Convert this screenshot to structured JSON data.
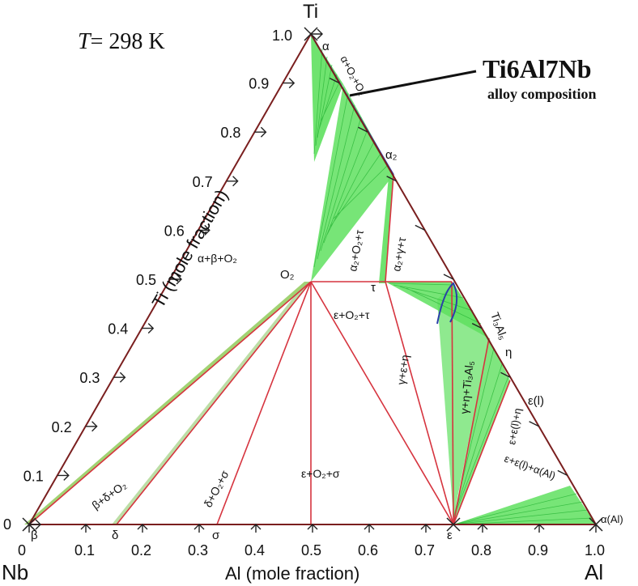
{
  "title": {
    "temperature_T": "T",
    "temperature_value": "= 298 K"
  },
  "elements": {
    "top": "Ti",
    "bottom_left": "Nb",
    "bottom_right": "Al"
  },
  "axes": {
    "ti_label": "Ti (mole fraction)",
    "al_label": "Al (mole fraction)",
    "ti_ticks": [
      "0",
      "0.1",
      "0.2",
      "0.3",
      "0.4",
      "0.5",
      "0.6",
      "0.7",
      "0.8",
      "0.9",
      "1.0"
    ],
    "al_ticks": [
      "0",
      "0.1",
      "0.2",
      "0.3",
      "0.4",
      "0.5",
      "0.6",
      "0.7",
      "0.8",
      "0.9",
      "1.0"
    ]
  },
  "callout": {
    "alloy_name": "Ti6Al7Nb",
    "alloy_caption": "alloy composition"
  },
  "phase_points": {
    "alpha": "α",
    "alpha2": "α₂",
    "O2": "O₂",
    "tau": "τ",
    "Ti3Al5": "Ti₃Al₅",
    "eta": "η",
    "eps_l": "ε(l)",
    "alpha_Al": "α(Al)",
    "beta": "β",
    "delta": "δ",
    "sigma": "σ",
    "epsilon": "ε"
  },
  "regions": {
    "alpha_beta_O2": "α+β+O₂",
    "alpha_O2": "α+O₂+O₂",
    "alpha2_O2_tau": "α₂+O₂+τ",
    "alpha2_gamma_tau": "α₂+γ+τ",
    "eps_O2_tau": "ε+O₂+τ",
    "gamma_eps_eta": "γ+ε+η",
    "gamma_eta_Ti3Al5": "γ+η+Ti₃Al₅",
    "eps_epsl_eta": "ε+ε(l)+η",
    "eps_epsl_alphaAl": "ε+ε(l)+α(Al)",
    "eps_O2_sigma": "ε+O₂+σ",
    "delta_O2_sigma": "δ+O₂+σ",
    "beta_delta_O2": "β+δ+O₂"
  },
  "colors": {
    "frame": "#7a1f1f",
    "tie_line": "#d6343f",
    "two_phase_fill": "#5fe05f",
    "two_phase_line": "#2db83a",
    "boundary_blue": "#2a3fa8",
    "tick": "#222222"
  },
  "chart_data": {
    "type": "ternary_phase_diagram",
    "components": [
      "Ti",
      "Nb",
      "Al"
    ],
    "compositions_mole_fraction": {
      "Ti": {
        "Al": 0.0,
        "Ti": 1.0
      },
      "Nb": {
        "Al": 0.0,
        "Ti": 0.0
      },
      "Al": {
        "Al": 1.0,
        "Ti": 0.0
      },
      "O2": {
        "Al": 0.25,
        "Ti": 0.5
      },
      "tau": {
        "Al": 0.38,
        "Ti": 0.5
      },
      "alpha2_corner": {
        "Al": 0.32,
        "Ti": 0.65
      },
      "beta": {
        "Al": 0.0,
        "Ti": 0.0
      },
      "delta": {
        "Al": 0.16,
        "Ti": 0.0
      },
      "sigma": {
        "Al": 0.34,
        "Ti": 0.0
      },
      "epsilon": {
        "Al": 0.75,
        "Ti": 0.0
      },
      "alpha_Al": {
        "Al": 1.0,
        "Ti": 0.0
      }
    }
  }
}
